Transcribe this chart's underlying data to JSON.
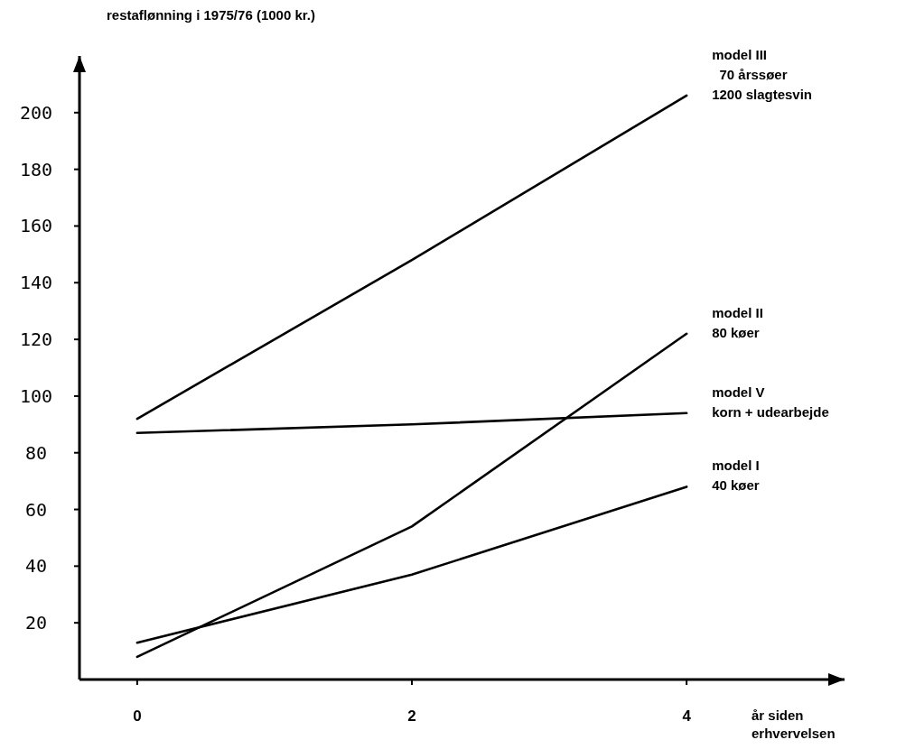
{
  "chart_data": {
    "type": "line",
    "ylabel": "restaflønning i 1975/76 (1000 kr.)",
    "xlabel": "år siden\nerhvervelsen",
    "x": [
      0,
      2,
      4
    ],
    "xlim": [
      -0.42,
      5.15
    ],
    "xticks": [
      0,
      2,
      4
    ],
    "ylim": [
      0,
      220
    ],
    "yticks": [
      20,
      40,
      60,
      80,
      100,
      120,
      140,
      160,
      180,
      200
    ],
    "series": [
      {
        "name": "model III\n  70 årssøer\n1200 slagtesvin",
        "color": "#000000",
        "values": [
          92,
          148,
          206
        ]
      },
      {
        "name": "model II\n80 køer",
        "color": "#000000",
        "values": [
          8,
          54,
          122
        ]
      },
      {
        "name": "model V\nkorn + udearbejde",
        "color": "#000000",
        "values": [
          87,
          90,
          94
        ]
      },
      {
        "name": "model I\n40 køer",
        "color": "#000000",
        "values": [
          13,
          37,
          68
        ]
      }
    ],
    "marker": "none",
    "line_style": "solid",
    "grid": false
  }
}
